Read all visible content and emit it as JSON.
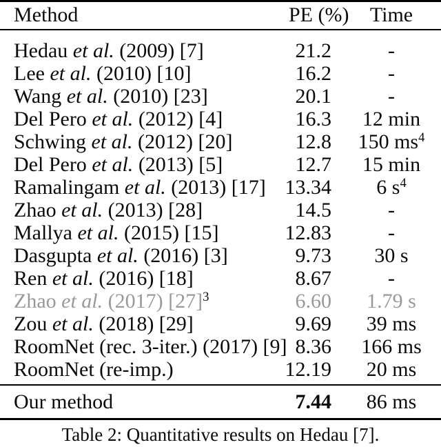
{
  "colors": {
    "background": "#ffffff",
    "text": "#0a0a0a",
    "gray_row_text": "#999999",
    "rule": "#000000"
  },
  "table": {
    "header": {
      "method": "Method",
      "pe": "PE (%)",
      "time": "Time"
    },
    "rows": [
      {
        "method_pre": "Hedau ",
        "method_etal": "et al.",
        "method_post": " (2009) [7]",
        "method_sup": "",
        "pe": "21.2",
        "time": "-",
        "time_sup": "",
        "gray": false
      },
      {
        "method_pre": "Lee ",
        "method_etal": "et al.",
        "method_post": " (2010) [10]",
        "method_sup": "",
        "pe": "16.2",
        "time": "-",
        "time_sup": "",
        "gray": false
      },
      {
        "method_pre": "Wang ",
        "method_etal": "et al.",
        "method_post": " (2010) [23]",
        "method_sup": "",
        "pe": "20.1",
        "time": "-",
        "time_sup": "",
        "gray": false
      },
      {
        "method_pre": "Del Pero ",
        "method_etal": "et al.",
        "method_post": " (2012) [4]",
        "method_sup": "",
        "pe": "16.3",
        "time": "12 min",
        "time_sup": "",
        "gray": false
      },
      {
        "method_pre": "Schwing ",
        "method_etal": "et al.",
        "method_post": " (2012) [20]",
        "method_sup": "",
        "pe": "12.8",
        "time": "150 ms",
        "time_sup": "4",
        "gray": false
      },
      {
        "method_pre": "Del Pero ",
        "method_etal": "et al.",
        "method_post": " (2013) [5]",
        "method_sup": "",
        "pe": "12.7",
        "time": "15 min",
        "time_sup": "",
        "gray": false
      },
      {
        "method_pre": "Ramalingam ",
        "method_etal": "et al.",
        "method_post": " (2013) [17]",
        "method_sup": "",
        "pe": "13.34",
        "time": "6 s",
        "time_sup": "4",
        "gray": false
      },
      {
        "method_pre": "Zhao ",
        "method_etal": "et al.",
        "method_post": " (2013) [28]",
        "method_sup": "",
        "pe": "14.5",
        "time": "-",
        "time_sup": "",
        "gray": false
      },
      {
        "method_pre": "Mallya ",
        "method_etal": "et al.",
        "method_post": " (2015) [15]",
        "method_sup": "",
        "pe": "12.83",
        "time": "-",
        "time_sup": "",
        "gray": false
      },
      {
        "method_pre": "Dasgupta ",
        "method_etal": "et al.",
        "method_post": " (2016) [3]",
        "method_sup": "",
        "pe": "9.73",
        "time": "30 s",
        "time_sup": "",
        "gray": false
      },
      {
        "method_pre": "Ren ",
        "method_etal": "et al.",
        "method_post": " (2016) [18]",
        "method_sup": "",
        "pe": "8.67",
        "time": "-",
        "time_sup": "",
        "gray": false
      },
      {
        "method_pre": "Zhao ",
        "method_etal": "et al.",
        "method_post": " (2017) [27]",
        "method_sup": "3",
        "pe": "6.60",
        "time": "1.79 s",
        "time_sup": "",
        "gray": true
      },
      {
        "method_pre": "Zou ",
        "method_etal": "et al.",
        "method_post": " (2018) [29]",
        "method_sup": "",
        "pe": "9.69",
        "time": "39 ms",
        "time_sup": "",
        "gray": false
      },
      {
        "method_pre": "RoomNet (rec. 3-iter.) (2017) [9]",
        "method_etal": "",
        "method_post": "",
        "method_sup": "",
        "pe": "8.36",
        "time": "166 ms",
        "time_sup": "",
        "gray": false
      },
      {
        "method_pre": "RoomNet (re-imp.)",
        "method_etal": "",
        "method_post": "",
        "method_sup": "",
        "pe": "12.19",
        "time": "20 ms",
        "time_sup": "",
        "gray": false
      }
    ],
    "final_row": {
      "method": "Our method",
      "pe": "7.44",
      "time": "86 ms"
    },
    "caption": "Table 2: Quantitative results on Hedau [7]."
  }
}
